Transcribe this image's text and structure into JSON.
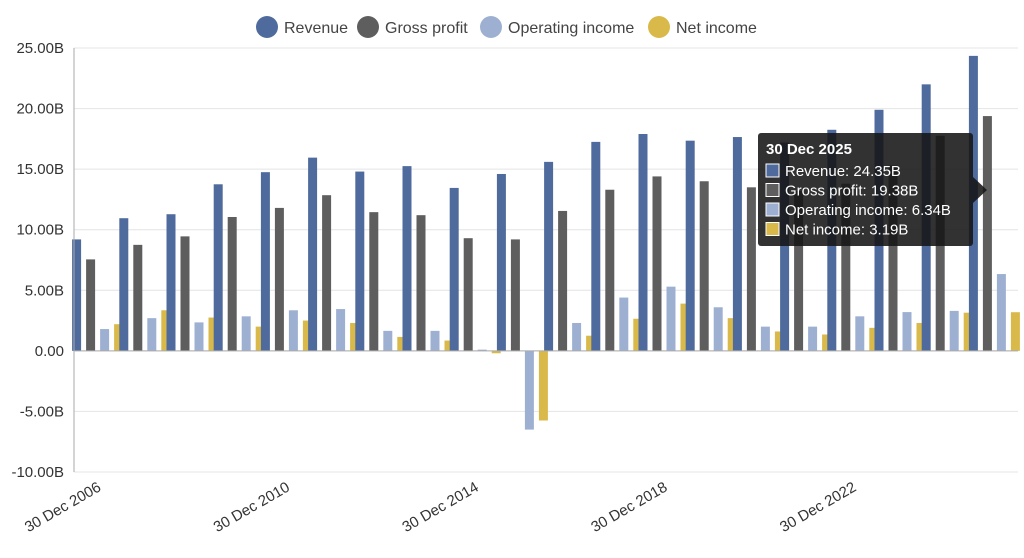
{
  "chart_data": {
    "type": "bar",
    "legend_position": "top-center",
    "grid": true,
    "ylim": [
      -10,
      25
    ],
    "y_ticks": [
      25,
      20,
      15,
      10,
      5,
      0,
      -5,
      -10
    ],
    "y_tick_labels": [
      "25.00B",
      "20.00B",
      "15.00B",
      "10.00B",
      "5.00B",
      "0.00",
      "-5.00B",
      "-10.00B"
    ],
    "x_tick_labels": [
      "30 Dec 2006",
      "30 Dec 2010",
      "30 Dec 2014",
      "30 Dec 2018",
      "30 Dec 2022"
    ],
    "x_tick_category_index": [
      0,
      4,
      8,
      12,
      16
    ],
    "categories": [
      "2006",
      "2007",
      "2008",
      "2009",
      "2010",
      "2011",
      "2012",
      "2013",
      "2014",
      "2015",
      "2016",
      "2017",
      "2018",
      "2019",
      "2020",
      "2021",
      "2022",
      "2023",
      "2024",
      "2025"
    ],
    "series": [
      {
        "name": "Revenue",
        "color": "#4f6b9d",
        "values": [
          9.2,
          10.95,
          11.28,
          13.75,
          14.75,
          15.95,
          14.8,
          15.25,
          13.45,
          14.6,
          15.6,
          17.25,
          17.9,
          17.35,
          17.65,
          17.2,
          18.25,
          19.9,
          22.0,
          24.35
        ]
      },
      {
        "name": "Gross profit",
        "color": "#5e5e5e",
        "values": [
          7.55,
          8.75,
          9.45,
          11.05,
          11.8,
          12.85,
          11.45,
          11.2,
          9.3,
          9.2,
          11.55,
          13.3,
          14.4,
          14.0,
          13.5,
          13.2,
          13.8,
          15.3,
          17.75,
          19.38
        ]
      },
      {
        "name": "Operating income",
        "color": "#9eb0d2",
        "values": [
          1.8,
          2.7,
          2.35,
          2.85,
          3.35,
          3.45,
          1.65,
          1.65,
          0.1,
          -6.5,
          2.3,
          4.4,
          5.3,
          3.6,
          2.0,
          2.0,
          2.85,
          3.2,
          3.3,
          6.34
        ]
      },
      {
        "name": "Net income",
        "color": "#d9b94a",
        "values": [
          2.2,
          3.35,
          2.75,
          2.0,
          2.5,
          2.3,
          1.15,
          0.85,
          -0.2,
          -5.75,
          1.25,
          2.65,
          3.9,
          2.7,
          1.6,
          1.35,
          1.9,
          2.3,
          3.15,
          3.19
        ]
      }
    ],
    "tooltip": {
      "title": "30 Dec 2025",
      "lines": [
        "Revenue: 24.35B",
        "Gross profit: 19.38B",
        "Operating income: 6.34B",
        "Net income: 3.19B"
      ]
    }
  }
}
